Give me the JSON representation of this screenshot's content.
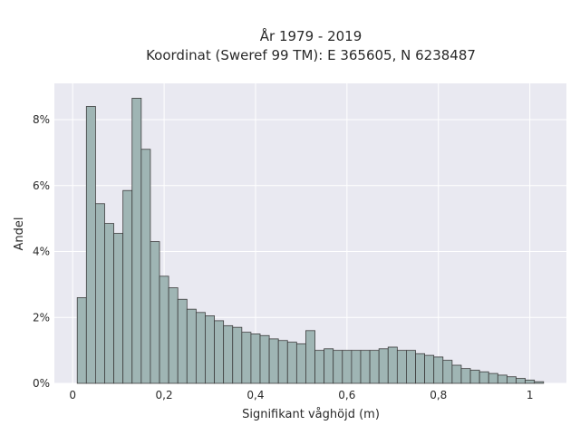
{
  "chart_data": {
    "type": "bar",
    "title_line1": "År 1979 - 2019",
    "title_line2": "Koordinat (Sweref 99 TM): E 365605, N 6238487",
    "xlabel": "Signifikant våghöjd (m)",
    "ylabel": "Andel",
    "xlim": [
      -0.04,
      1.08
    ],
    "ylim": [
      0,
      9.1
    ],
    "grid": true,
    "bin_width": 0.02,
    "x_ticks": [
      {
        "value": 0,
        "label": "0"
      },
      {
        "value": 0.2,
        "label": "0,2"
      },
      {
        "value": 0.4,
        "label": "0,4"
      },
      {
        "value": 0.6,
        "label": "0,6"
      },
      {
        "value": 0.8,
        "label": "0,8"
      },
      {
        "value": 1.0,
        "label": "1"
      }
    ],
    "y_ticks": [
      {
        "value": 0,
        "label": "0%"
      },
      {
        "value": 2,
        "label": "2%"
      },
      {
        "value": 4,
        "label": "4%"
      },
      {
        "value": 6,
        "label": "6%"
      },
      {
        "value": 8,
        "label": "8%"
      }
    ],
    "bins_start": [
      0.01,
      0.03,
      0.05,
      0.07,
      0.09,
      0.11,
      0.13,
      0.15,
      0.17,
      0.19,
      0.21,
      0.23,
      0.25,
      0.27,
      0.29,
      0.31,
      0.33,
      0.35,
      0.37,
      0.39,
      0.41,
      0.43,
      0.45,
      0.47,
      0.49,
      0.51,
      0.53,
      0.55,
      0.57,
      0.59,
      0.61,
      0.63,
      0.65,
      0.67,
      0.69,
      0.71,
      0.73,
      0.75,
      0.77,
      0.79,
      0.81,
      0.83,
      0.85,
      0.87,
      0.89,
      0.91,
      0.93,
      0.95,
      0.97,
      0.99,
      1.01
    ],
    "values": [
      2.6,
      8.4,
      5.45,
      4.85,
      4.55,
      5.85,
      8.65,
      7.1,
      4.3,
      3.25,
      2.9,
      2.55,
      2.25,
      2.15,
      2.05,
      1.9,
      1.75,
      1.7,
      1.55,
      1.5,
      1.45,
      1.35,
      1.3,
      1.25,
      1.2,
      1.6,
      1.0,
      1.05,
      1.0,
      1.0,
      1.0,
      1.0,
      1.0,
      1.05,
      1.1,
      1.0,
      1.0,
      0.9,
      0.85,
      0.8,
      0.7,
      0.55,
      0.45,
      0.4,
      0.35,
      0.3,
      0.25,
      0.2,
      0.15,
      0.1,
      0.05
    ]
  }
}
